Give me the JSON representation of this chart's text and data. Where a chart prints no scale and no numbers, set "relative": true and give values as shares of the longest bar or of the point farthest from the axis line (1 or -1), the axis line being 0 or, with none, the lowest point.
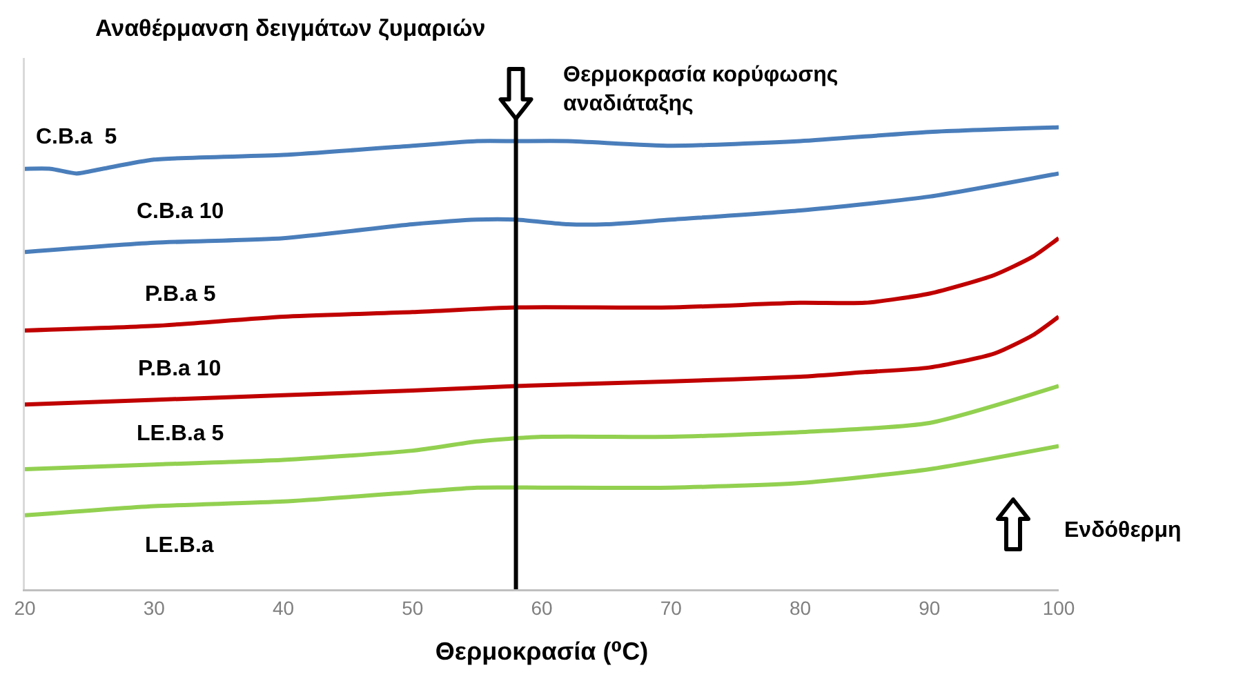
{
  "chart_data": {
    "type": "line",
    "title": "Αναθέρμανση δειγμάτων ζυμαριών",
    "xlabel": "Θερμοκρασία (⁰C)",
    "relative": true,
    "xlim": [
      20,
      100
    ],
    "xticks": [
      20,
      30,
      40,
      50,
      60,
      70,
      80,
      90,
      100
    ],
    "grid": false,
    "legend": false,
    "marker": "none",
    "line_style": "solid",
    "annotations": [
      "Ενδόθερμη"
    ],
    "ref_lines": [
      {
        "axis": "x",
        "value": 58,
        "label": "Θερμοκρασία κορύφωσης αναδιάταξης",
        "color": "#000000"
      }
    ],
    "series": [
      {
        "name": "C.B.a  5",
        "color": "#4a7ebb",
        "x": [
          20,
          22,
          24,
          26,
          30,
          40,
          50,
          55,
          58,
          62,
          70,
          80,
          90,
          100
        ],
        "values": [
          0.91,
          0.91,
          0.9,
          0.91,
          0.93,
          0.94,
          0.96,
          0.97,
          0.97,
          0.97,
          0.96,
          0.97,
          0.99,
          1
        ]
      },
      {
        "name": "C.B.a 10",
        "color": "#4a7ebb",
        "x": [
          20,
          30,
          40,
          50,
          55,
          58,
          62,
          65,
          70,
          80,
          90,
          100
        ],
        "values": [
          0.73,
          0.75,
          0.76,
          0.79,
          0.8,
          0.8,
          0.79,
          0.79,
          0.8,
          0.82,
          0.85,
          0.9
        ]
      },
      {
        "name": "P.B.a 5",
        "color": "#c00000",
        "x": [
          20,
          30,
          40,
          50,
          58,
          70,
          80,
          85,
          90,
          95,
          98,
          100
        ],
        "values": [
          0.56,
          0.57,
          0.59,
          0.6,
          0.61,
          0.61,
          0.62,
          0.62,
          0.64,
          0.68,
          0.72,
          0.76
        ]
      },
      {
        "name": "P.B.a 10",
        "color": "#c00000",
        "x": [
          20,
          30,
          40,
          50,
          58,
          70,
          80,
          85,
          90,
          95,
          98,
          100
        ],
        "values": [
          0.4,
          0.41,
          0.42,
          0.43,
          0.44,
          0.45,
          0.46,
          0.47,
          0.48,
          0.51,
          0.55,
          0.59
        ]
      },
      {
        "name": "LE.B.a 5",
        "color": "#92d050",
        "x": [
          20,
          30,
          40,
          50,
          55,
          60,
          70,
          80,
          90,
          100
        ],
        "values": [
          0.26,
          0.27,
          0.28,
          0.3,
          0.32,
          0.33,
          0.33,
          0.34,
          0.36,
          0.44
        ]
      },
      {
        "name": "LE.B.a",
        "color": "#92d050",
        "x": [
          20,
          30,
          40,
          50,
          55,
          60,
          70,
          80,
          90,
          100
        ],
        "values": [
          0.16,
          0.18,
          0.19,
          0.21,
          0.22,
          0.22,
          0.22,
          0.23,
          0.26,
          0.31
        ]
      }
    ]
  }
}
